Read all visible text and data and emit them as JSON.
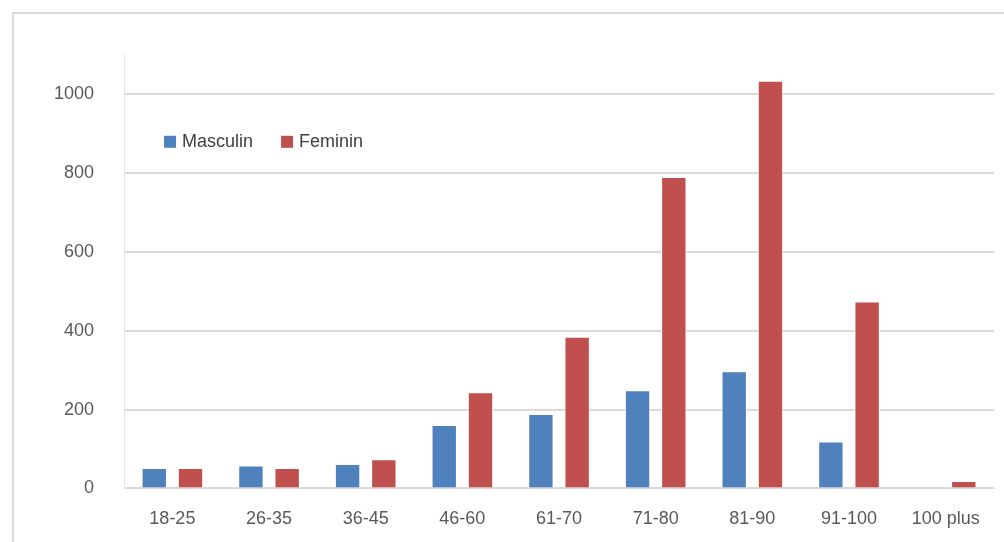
{
  "chart_data": {
    "type": "bar",
    "categories": [
      "18-25",
      "26-35",
      "36-45",
      "46-60",
      "61-70",
      "71-80",
      "81-90",
      "91-100",
      "100 plus"
    ],
    "series": [
      {
        "name": "Masculin",
        "color": "#4f81bd",
        "values": [
          52,
          58,
          62,
          161,
          189,
          249,
          297,
          119,
          null
        ]
      },
      {
        "name": "Feminin",
        "color": "#c0504d",
        "values": [
          52,
          52,
          74,
          244,
          385,
          790,
          1034,
          474,
          19
        ]
      }
    ],
    "ylim": [
      0,
      1100
    ],
    "yticks": [
      0,
      200,
      400,
      600,
      800,
      1000
    ],
    "grid": "y",
    "legend": "top left"
  }
}
